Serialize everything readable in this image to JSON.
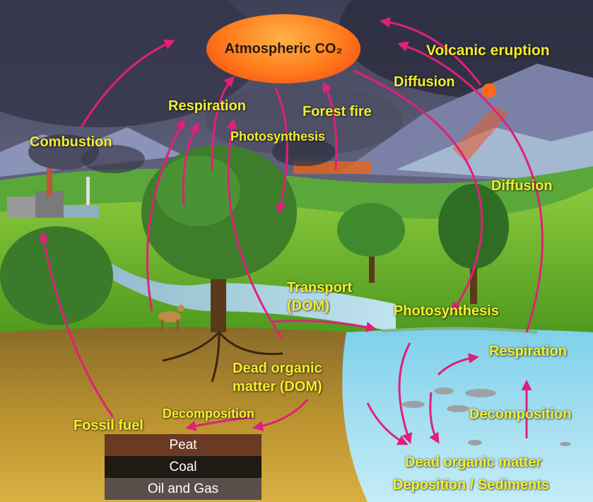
{
  "title": "Atmospheric CO₂",
  "labels": {
    "volcanic": "Volcanic eruption",
    "diffusion_top": "Diffusion",
    "respiration_top": "Respiration",
    "forest_fire": "Forest fire",
    "combustion": "Combustion",
    "photosynthesis_land": "Photosynthesis",
    "diffusion_right": "Diffusion",
    "transport_line1": "Transport",
    "transport_line2": "(DOM)",
    "photosynthesis_water": "Photosynthesis",
    "respiration_water": "Respiration",
    "dom_line1": "Dead organic",
    "dom_line2": "matter (DOM)",
    "decomposition_land": "Decomposition",
    "fossil_fuel": "Fossil fuel",
    "decomposition_water": "Decomposition",
    "dead_organic_water": "Dead organic matter",
    "deposition": "Deposition / Sediments"
  },
  "layers": {
    "peat": "Peat",
    "coal": "Coal",
    "oil_gas": "Oil and Gas"
  },
  "colors": {
    "label": "#f3ee2e",
    "arrow": "#e0207a",
    "peat": "#6b3a22",
    "coal": "#1f1a14",
    "oil_gas": "#5a4e4a"
  }
}
